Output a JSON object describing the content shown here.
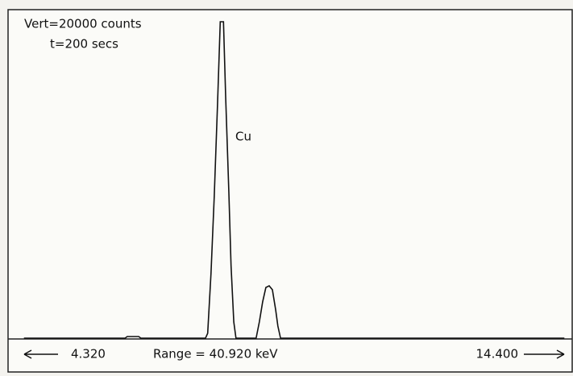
{
  "chart_data": {
    "type": "line",
    "annotations": {
      "vert": "Vert=20000 counts",
      "time": "t=200 secs",
      "peak": "Cu",
      "range": "Range = 40.920 keV"
    },
    "x": [
      4.39,
      6.25,
      6.29,
      6.5,
      6.54,
      7.73,
      7.77,
      7.83,
      7.89,
      7.95,
      8.0,
      8.06,
      8.1,
      8.16,
      8.2,
      8.25,
      8.29,
      8.66,
      8.72,
      8.78,
      8.84,
      8.9,
      8.96,
      9.02,
      9.06,
      9.11,
      14.33
    ],
    "series": [
      {
        "color": "#111111",
        "values": [
          0,
          0,
          100,
          100,
          0,
          0,
          300,
          3940,
          8620,
          14290,
          19360,
          19360,
          14780,
          8870,
          4430,
          990,
          0,
          0,
          990,
          2220,
          3100,
          3200,
          2960,
          1720,
          740,
          0,
          0
        ]
      }
    ],
    "xlim": [
      4.32,
      14.4
    ],
    "xticks": [
      {
        "value": 4.32,
        "label": "4.320"
      },
      {
        "value": 14.4,
        "label": "14.400"
      }
    ],
    "ylim": [
      0,
      20000
    ]
  }
}
